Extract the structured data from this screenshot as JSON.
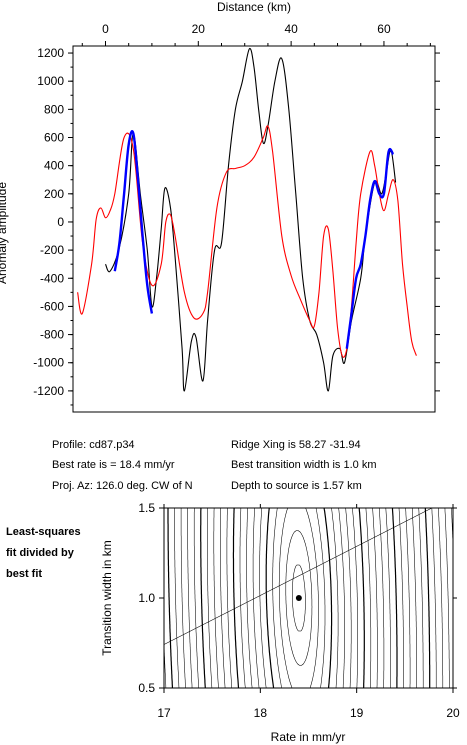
{
  "chart_data": [
    {
      "type": "line",
      "x_axis_top_label": "Distance (km)",
      "x_ticks_top": [
        0,
        20,
        40,
        60
      ],
      "ylabel": "Anomaly amplitude",
      "y_ticks": [
        1200,
        1000,
        800,
        600,
        400,
        200,
        0,
        -200,
        -400,
        -600,
        -800,
        -1000,
        -1200
      ],
      "xlim": [
        -7,
        71
      ],
      "ylim": [
        -1350,
        1250
      ],
      "grid": false,
      "series": [
        {
          "color": "#000000",
          "x": [
            0,
            1,
            3,
            5,
            6,
            7.5,
            9,
            10,
            11,
            12,
            12.8,
            14,
            15,
            16.5,
            17,
            18.5,
            19.5,
            21,
            22,
            23.5,
            25,
            26.5,
            28,
            29.5,
            31,
            32,
            33,
            34,
            35,
            36.5,
            38,
            39.5,
            41,
            42.5,
            44,
            45.5,
            47,
            48,
            49,
            50.5,
            51.5,
            53,
            55,
            56,
            58,
            59.5,
            60.5,
            61.5,
            62.5
          ],
          "y": [
            -300,
            -350,
            -180,
            200,
            630,
            200,
            -200,
            -600,
            -400,
            -50,
            240,
            100,
            -250,
            -900,
            -1200,
            -850,
            -820,
            -1130,
            -700,
            -200,
            -150,
            400,
            800,
            1000,
            1230,
            1100,
            800,
            560,
            680,
            1000,
            1160,
            800,
            200,
            -400,
            -700,
            -800,
            -1000,
            -1200,
            -950,
            -900,
            -1000,
            -700,
            -400,
            -100,
            280,
            200,
            350,
            510,
            280
          ]
        },
        {
          "color": "#ff0000",
          "x": [
            -6,
            -5,
            -3,
            -2,
            -1,
            0,
            1,
            2,
            4,
            6,
            8,
            10,
            12,
            13,
            14,
            15,
            17,
            19,
            21,
            22,
            24,
            26,
            28,
            30,
            32,
            34,
            35,
            36,
            38,
            40,
            42,
            44,
            45,
            46,
            47,
            48,
            49,
            50,
            51,
            52,
            53,
            54,
            55,
            57,
            58,
            59,
            60,
            61,
            62,
            63,
            64,
            65,
            66,
            67
          ],
          "y": [
            -500,
            -650,
            -300,
            20,
            100,
            30,
            80,
            200,
            600,
            520,
            -150,
            -450,
            -300,
            0,
            50,
            -100,
            -500,
            -680,
            -650,
            -500,
            100,
            350,
            380,
            400,
            460,
            600,
            680,
            500,
            -100,
            -380,
            -550,
            -700,
            -740,
            -500,
            -100,
            -50,
            -350,
            -750,
            -950,
            -900,
            -600,
            -150,
            200,
            500,
            400,
            200,
            80,
            200,
            300,
            150,
            -300,
            -600,
            -850,
            -950
          ]
        },
        {
          "color": "#0000ff",
          "x": [
            2,
            3,
            4,
            5,
            6,
            7,
            8,
            9,
            10
          ],
          "y": [
            -350,
            -150,
            200,
            550,
            630,
            300,
            -100,
            -450,
            -650
          ]
        },
        {
          "color": "#0000ff",
          "x": [
            52,
            53,
            54,
            55,
            56,
            57,
            58,
            59,
            60,
            61,
            62
          ],
          "y": [
            -900,
            -650,
            -400,
            -300,
            -100,
            150,
            290,
            200,
            200,
            500,
            480
          ]
        }
      ]
    },
    {
      "type": "contour",
      "xlabel": "Rate in mm/yr",
      "ylabel": "Transition width in km",
      "x_ticks": [
        17,
        18,
        19,
        20
      ],
      "y_ticks": [
        1.5,
        1.0,
        0.5
      ],
      "xlim": [
        17,
        20
      ],
      "ylim": [
        0.5,
        1.5
      ],
      "best_point": {
        "x": 18.4,
        "y": 1.0
      }
    }
  ],
  "info": {
    "profile": "Profile: cd87.p34",
    "best_rate": "Best rate is = 18.4 mm/yr",
    "proj_az": "Proj. Az: 126.0 deg. CW of N",
    "ridge_xing": "Ridge Xing is 58.27 -31.94",
    "best_width": "Best transition width is 1.0 km",
    "depth": "Depth to source is   1.57 km"
  },
  "side_label": [
    "Least-squares",
    "fit divided by",
    "best fit"
  ]
}
